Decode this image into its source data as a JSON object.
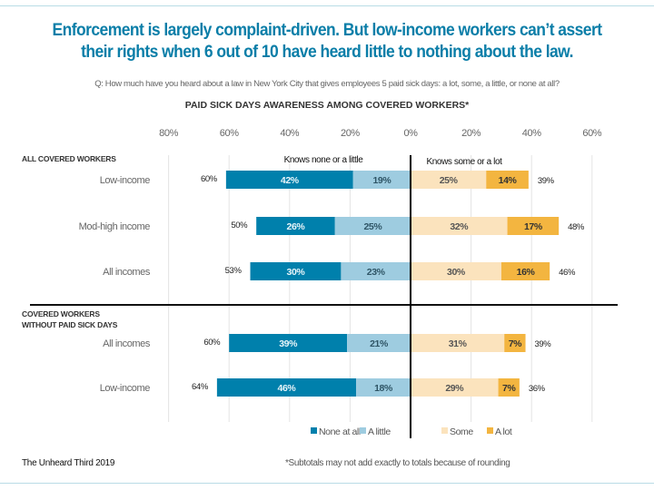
{
  "header": {
    "title_line1": "Enforcement is largely complaint-driven. But low-income workers can’t assert",
    "title_line2": "their rights when 6 out of 10 have heard little to nothing about the law.",
    "question": "Q: How much have you heard about a law in New York City that gives employees 5 paid sick days: a lot, some, a little, or none at all?"
  },
  "footer": {
    "source": "The Unheard Third 2019",
    "footnote": "*Subtotals may not add exactly to totals because of rounding"
  },
  "colors": {
    "title": "#0A7EA8",
    "none_at_all": "#0080AC",
    "a_little": "#9ECCE0",
    "some": "#FBE3BD",
    "a_lot": "#F3B540",
    "rule": "#B9DCE6"
  },
  "chart_data": {
    "type": "bar",
    "orientation": "horizontal-diverging-stacked",
    "title": "PAID SICK DAYS AWARENESS AMONG COVERED WORKERS*",
    "xlabel": "",
    "ylabel": "",
    "x_ticks": [
      "80%",
      "60%",
      "40%",
      "20%",
      "0%",
      "20%",
      "40%",
      "60%"
    ],
    "xlim": [
      -80,
      60
    ],
    "grid": true,
    "legend_position": "bottom-center",
    "group_labels": {
      "left": "Knows none or a little",
      "right": "Knows some or a lot"
    },
    "series": [
      {
        "name": "None at all",
        "side": "left",
        "color": "#0080AC"
      },
      {
        "name": "A little",
        "side": "left",
        "color": "#9ECCE0"
      },
      {
        "name": "Some",
        "side": "right",
        "color": "#FBE3BD"
      },
      {
        "name": "A lot",
        "side": "right",
        "color": "#F3B540"
      }
    ],
    "sections": [
      {
        "label_lines": [
          "ALL COVERED WORKERS"
        ],
        "rows": [
          {
            "label": "Low-income",
            "none_at_all": 42,
            "a_little": 19,
            "some": 25,
            "a_lot": 14,
            "left_total": "60%",
            "right_total": "39%"
          },
          {
            "label": "Mod-high income",
            "none_at_all": 26,
            "a_little": 25,
            "some": 32,
            "a_lot": 17,
            "left_total": "50%",
            "right_total": "48%"
          },
          {
            "label": "All incomes",
            "none_at_all": 30,
            "a_little": 23,
            "some": 30,
            "a_lot": 16,
            "left_total": "53%",
            "right_total": "46%"
          }
        ]
      },
      {
        "label_lines": [
          "COVERED WORKERS",
          "WITHOUT PAID SICK DAYS"
        ],
        "rows": [
          {
            "label": "All incomes",
            "none_at_all": 39,
            "a_little": 21,
            "some": 31,
            "a_lot": 7,
            "left_total": "60%",
            "right_total": "39%"
          },
          {
            "label": "Low-income",
            "none_at_all": 46,
            "a_little": 18,
            "some": 29,
            "a_lot": 7,
            "left_total": "64%",
            "right_total": "36%"
          }
        ]
      }
    ]
  }
}
